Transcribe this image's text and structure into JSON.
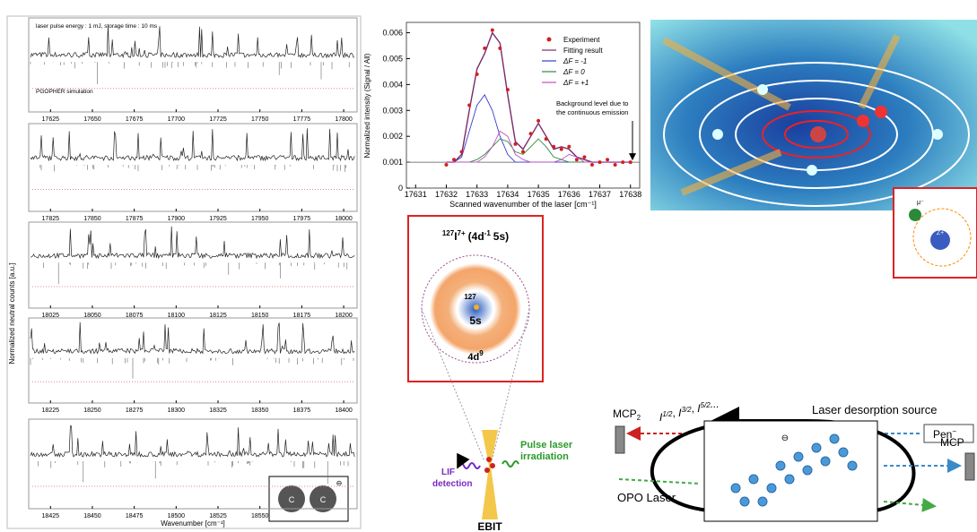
{
  "chart_data": {
    "type": "line",
    "y_label": "Normalized intensity (Signal / All)",
    "x_label": "Scanned wavenumber of the laser [cm⁻¹]",
    "x": [
      17632,
      17632.25,
      17632.5,
      17632.75,
      17633,
      17633.25,
      17633.5,
      17633.75,
      17634,
      17634.25,
      17634.5,
      17634.75,
      17635,
      17635.25,
      17635.5,
      17635.75,
      17636,
      17636.25,
      17636.5,
      17636.75,
      17637,
      17637.25,
      17637.5,
      17637.75,
      17638
    ],
    "series": [
      {
        "name": "Experiment",
        "color": "#d42020",
        "style": "points",
        "values": [
          0.0009,
          0.0011,
          0.0014,
          0.0032,
          0.0044,
          0.0054,
          0.0061,
          0.0054,
          0.0038,
          0.0017,
          0.0014,
          0.0021,
          0.0026,
          0.0019,
          0.0016,
          0.0015,
          0.0016,
          0.0011,
          0.0012,
          0.0009,
          0.001,
          0.0011,
          0.0009,
          0.001,
          0.001
        ]
      },
      {
        "name": "Fitting result",
        "color": "#7a2a6a",
        "style": "line",
        "values": [
          0.001,
          0.001,
          0.0013,
          0.003,
          0.0046,
          0.0052,
          0.006,
          0.0056,
          0.0036,
          0.0018,
          0.0015,
          0.002,
          0.0025,
          0.002,
          0.0015,
          0.0016,
          0.0015,
          0.0012,
          0.0011,
          0.001,
          0.001,
          0.001,
          0.001,
          0.001,
          0.001
        ]
      },
      {
        "name": "ΔF = -1",
        "color": "#3a3ad0",
        "style": "line",
        "values": [
          0.001,
          0.001,
          0.0012,
          0.0022,
          0.0032,
          0.0036,
          0.003,
          0.002,
          0.0013,
          0.001,
          0.001,
          0.001,
          0.001,
          0.001,
          0.001,
          0.001,
          0.001,
          0.001,
          0.001,
          0.001,
          0.001,
          0.001,
          0.001,
          0.001,
          0.001
        ]
      },
      {
        "name": "ΔF =  0",
        "color": "#2a8a3a",
        "style": "line",
        "values": [
          0.001,
          0.001,
          0.001,
          0.001,
          0.0011,
          0.0013,
          0.0016,
          0.0019,
          0.0018,
          0.0014,
          0.0013,
          0.0016,
          0.0019,
          0.0016,
          0.0012,
          0.0011,
          0.001,
          0.001,
          0.001,
          0.001,
          0.001,
          0.001,
          0.001,
          0.001,
          0.001
        ]
      },
      {
        "name": "ΔF = +1",
        "color": "#c050c0",
        "style": "line",
        "values": [
          0.001,
          0.001,
          0.001,
          0.001,
          0.001,
          0.0012,
          0.0016,
          0.0022,
          0.002,
          0.0013,
          0.0011,
          0.001,
          0.001,
          0.001,
          0.001,
          0.0011,
          0.0013,
          0.0012,
          0.001,
          0.001,
          0.001,
          0.001,
          0.001,
          0.001,
          0.001
        ]
      }
    ],
    "xlim": [
      17630.7,
      17638.3
    ],
    "xticks": [
      17631,
      17632,
      17633,
      17634,
      17635,
      17636,
      17637,
      17638
    ],
    "ylim": [
      0,
      0.0064
    ],
    "yticks": [
      0,
      0.001,
      0.002,
      0.003,
      0.004,
      0.005,
      0.006
    ],
    "baseline": 0.001,
    "annotation": [
      "Background level due to",
      "the continuous emission"
    ]
  },
  "spectra_panel": {
    "y_label": "Normalized neutral counts [a.u.]",
    "x_label": "Wavenumber [cm⁻¹]",
    "note": "laser pulse energy : 1 mJ, storage time : 10 ms",
    "simulation": "PGOPHER simulation",
    "strips": [
      {
        "xlim": [
          17612,
          17808
        ],
        "xticks": [
          17625,
          17650,
          17675,
          17700,
          17725,
          17750,
          17775,
          17800
        ]
      },
      {
        "xlim": [
          17812,
          18008
        ],
        "xticks": [
          17825,
          17850,
          17875,
          17900,
          17925,
          17950,
          17975,
          18000
        ]
      },
      {
        "xlim": [
          18012,
          18208
        ],
        "xticks": [
          18025,
          18050,
          18075,
          18100,
          18125,
          18150,
          18175,
          18200
        ]
      },
      {
        "xlim": [
          18212,
          18408
        ],
        "xticks": [
          18225,
          18250,
          18275,
          18300,
          18325,
          18350,
          18375,
          18400
        ]
      },
      {
        "xlim": [
          18412,
          18608
        ],
        "xticks": [
          18425,
          18450,
          18475,
          18500,
          18525,
          18550
        ]
      }
    ],
    "inset": {
      "charge": "⊖",
      "atom1": "C",
      "atom2": "C"
    }
  },
  "ion_panel": {
    "mass": "127",
    "element": "I",
    "charge": "7+",
    "config_open": "(4d",
    "config_sup": "-1",
    "config_close": "5s)",
    "core_mass": "127",
    "core_label": "5s",
    "shell_base": "4d",
    "shell_sup": "9"
  },
  "ebit": {
    "pulse": [
      "Pulse laser",
      "irradiation"
    ],
    "lif": [
      "LIF",
      "detection"
    ],
    "name": "EBIT"
  },
  "muon_inset": {
    "muon": "μ⁻",
    "nucleus": "Z+"
  },
  "storage_ring": {
    "mcp2_base": "MCP",
    "mcp2_sub": "2",
    "terms": [
      {
        "base": "I",
        "sup": "1/2"
      },
      {
        "base": "I",
        "sup": "3/2"
      },
      {
        "base": "I",
        "sup": "5/2"
      }
    ],
    "separator": ", ",
    "ellipsis": "...",
    "source": "Laser desorption source",
    "pen_base": "Pen",
    "pen_sup": "−",
    "opo": "OPO Laser",
    "mcp1": "MCP",
    "charge": "⊖"
  }
}
